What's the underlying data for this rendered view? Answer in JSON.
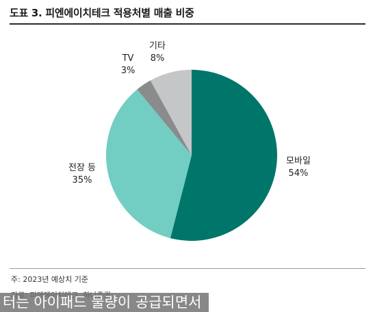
{
  "header": {
    "title": "도표 3. 피엔에이치테크 적용처별 매출 비중"
  },
  "chart_data": {
    "type": "pie",
    "title": "도표 3. 피엔에이치테크 적용처별 매출 비중",
    "slices": [
      {
        "label": "모바일",
        "value": 54,
        "display": "54%",
        "color": "#00766b"
      },
      {
        "label": "전장 등",
        "value": 35,
        "display": "35%",
        "color": "#72cdc3"
      },
      {
        "label": "TV",
        "value": 3,
        "display": "3%",
        "color": "#8a8c8c"
      },
      {
        "label": "기타",
        "value": 8,
        "display": "8%",
        "color": "#c5c6c8"
      }
    ]
  },
  "footer": {
    "note": "주: 2023년 예상치 기준",
    "source": "자료: 피엔에이치테크, 하나증권"
  },
  "overlay": {
    "caption": "터는 아이패드 물량이 공급되면서"
  }
}
